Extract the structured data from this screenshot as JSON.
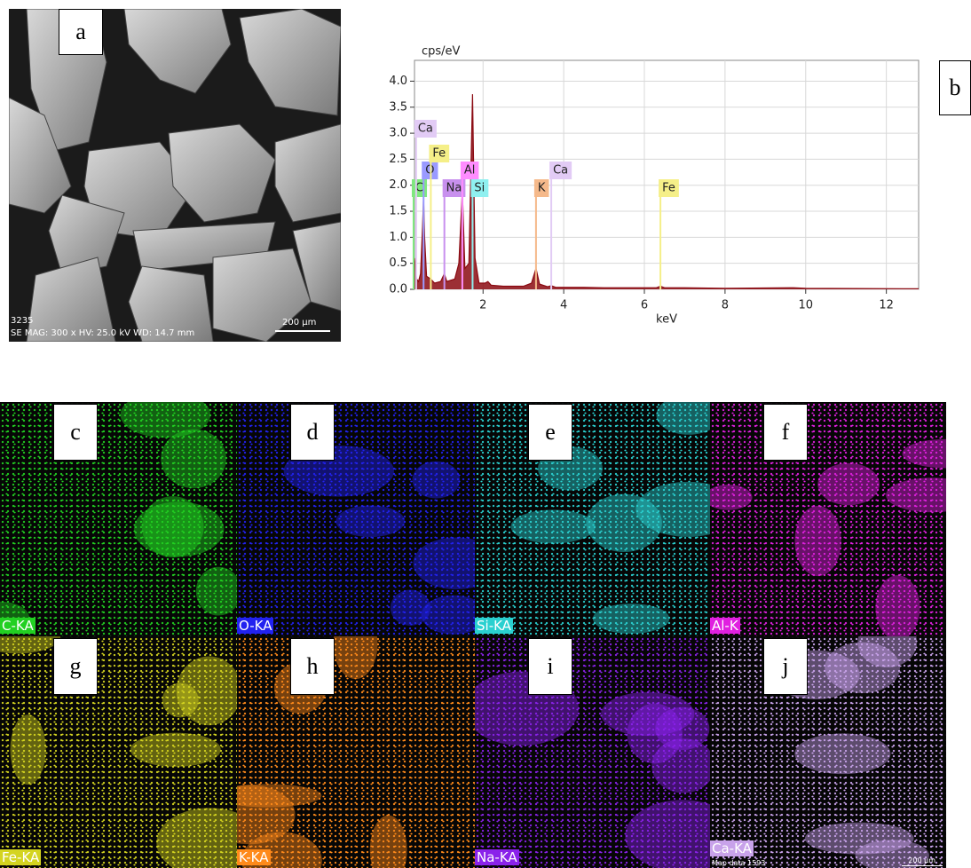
{
  "panel_a": {
    "label": "a",
    "number": "3235",
    "info": "SE  MAG: 300 x HV: 25.0 kV WD: 14.7 mm",
    "scale": "200 µm"
  },
  "chart_data": {
    "type": "line",
    "label": "b",
    "ylabel": "cps/eV",
    "xlabel": "keV",
    "xlim": [
      0.3,
      12.8
    ],
    "ylim": [
      0,
      4.4
    ],
    "xticks": [
      2,
      4,
      6,
      8,
      10,
      12
    ],
    "yticks": [
      {
        "value": 0,
        "label": "0.0"
      },
      {
        "value": 0.5,
        "label": "0.5"
      },
      {
        "value": 1,
        "label": "1.0"
      },
      {
        "value": 1.5,
        "label": "1.5"
      },
      {
        "value": 2,
        "label": "2.0"
      },
      {
        "value": 2.5,
        "label": "2.5"
      },
      {
        "value": 3,
        "label": "3.0"
      },
      {
        "value": 3.5,
        "label": "3.5"
      },
      {
        "value": 4,
        "label": "4.0"
      }
    ],
    "grid": true,
    "series": [
      {
        "name": "spectrum",
        "color": "#8b0a12",
        "x": [
          0.3,
          0.35,
          0.4,
          0.45,
          0.5,
          0.525,
          0.55,
          0.6,
          0.7,
          0.8,
          0.95,
          1.04,
          1.1,
          1.3,
          1.4,
          1.486,
          1.55,
          1.65,
          1.74,
          1.8,
          1.9,
          2.05,
          2.12,
          2.2,
          2.5,
          3.0,
          3.2,
          3.313,
          3.4,
          3.6,
          3.69,
          3.8,
          4.5,
          5.0,
          6.3,
          6.398,
          6.5,
          7.0,
          8.0,
          9.7,
          10.0,
          12.8
        ],
        "values": [
          0.6,
          0.2,
          0.15,
          0.3,
          1.2,
          1.77,
          1.0,
          0.25,
          0.2,
          0.12,
          0.15,
          0.3,
          0.15,
          0.2,
          0.5,
          1.9,
          0.4,
          0.5,
          3.75,
          0.6,
          0.12,
          0.12,
          0.15,
          0.08,
          0.06,
          0.06,
          0.12,
          0.4,
          0.1,
          0.05,
          0.07,
          0.04,
          0.04,
          0.03,
          0.03,
          0.06,
          0.03,
          0.03,
          0.02,
          0.03,
          0.02,
          0.01
        ]
      }
    ],
    "elements": [
      {
        "label": "C",
        "x": 0.277,
        "color": "#7fe87f"
      },
      {
        "label": "O",
        "x": 0.525,
        "color": "#9a9aff"
      },
      {
        "label": "Na",
        "x": 1.041,
        "color": "#c890ee"
      },
      {
        "label": "Al",
        "x": 1.486,
        "color": "#ff8cff"
      },
      {
        "label": "Si",
        "x": 1.74,
        "color": "#8ff0f0"
      },
      {
        "label": "K",
        "x": 3.313,
        "color": "#f5b98a"
      },
      {
        "label": "Ca",
        "x": 3.691,
        "color": "#e2cbf5"
      },
      {
        "label": "Fe",
        "x": 6.398,
        "color": "#f5ef88"
      },
      {
        "label": "Fe",
        "x": 0.705,
        "color": "#f5ef88"
      },
      {
        "label": "Ca",
        "x": 0.341,
        "color": "#e2cbf5"
      }
    ]
  },
  "maps": [
    {
      "label": "c",
      "element": "C-KA",
      "color": "#22d022"
    },
    {
      "label": "d",
      "element": "O-KA",
      "color": "#2222f0"
    },
    {
      "label": "e",
      "element": "Si-KA",
      "color": "#2ad0d0"
    },
    {
      "label": "f",
      "element": "Al-K",
      "color": "#e020e0"
    },
    {
      "label": "g",
      "element": "Fe-KA",
      "color": "#d4d420"
    },
    {
      "label": "h",
      "element": "K-KA",
      "color": "#ff8a1a"
    },
    {
      "label": "i",
      "element": "Na-KA",
      "color": "#8a22ea"
    },
    {
      "label": "j",
      "element": "Ca-KA",
      "color": "#c8a2ea"
    }
  ],
  "map_footer": {
    "left": "Map data 1593",
    "scale": "200 µm"
  }
}
